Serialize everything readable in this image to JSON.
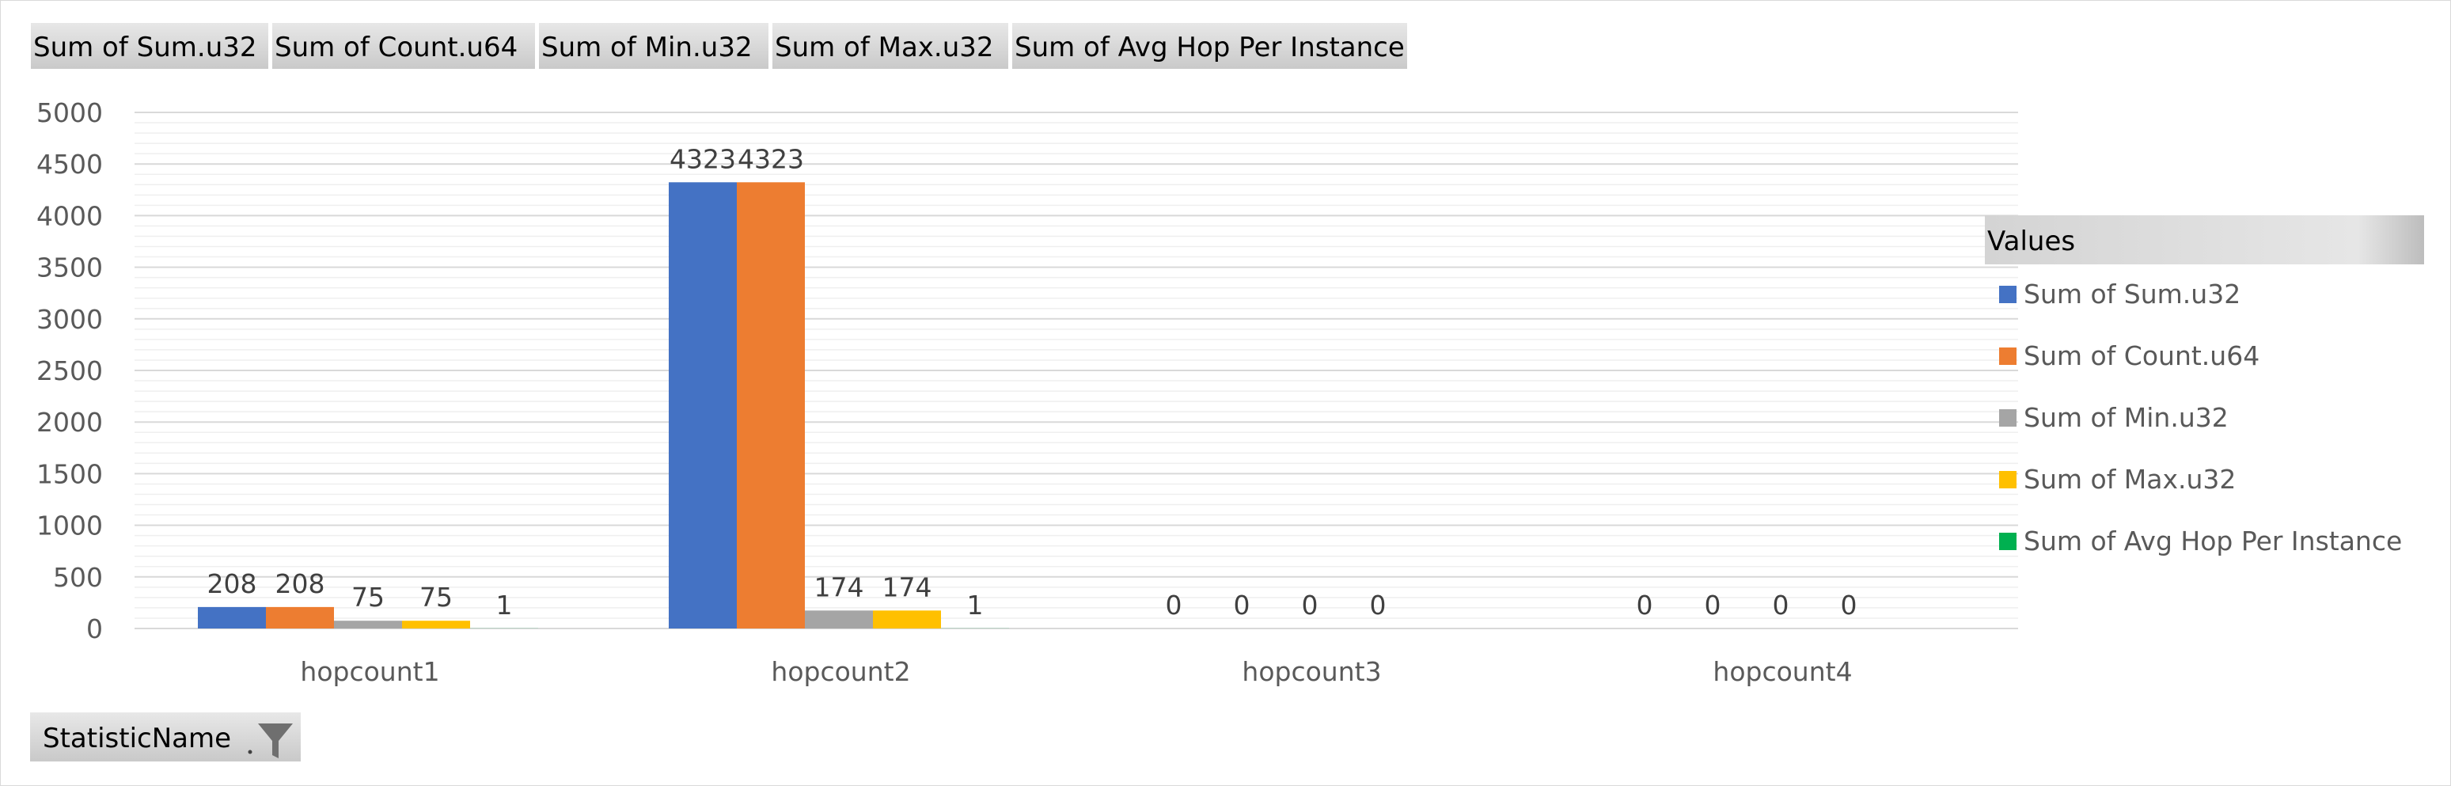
{
  "pivot_fields": {
    "value_buttons": [
      "Sum of  Sum.u32",
      "Sum of  Count.u64",
      "Sum of  Min.u32",
      "Sum of  Max.u32",
      "Sum of Avg Hop Per Instance"
    ],
    "axis_button": "StatisticName",
    "legend_header": "Values"
  },
  "chart_data": {
    "type": "bar",
    "categories": [
      "hopcount1",
      "hopcount2",
      "hopcount3",
      "hopcount4"
    ],
    "series": [
      {
        "name": "Sum of  Sum.u32",
        "color": "#4472C4",
        "values": [
          208,
          4323,
          0,
          0
        ],
        "labels": [
          "208",
          "4323",
          "0",
          "0"
        ]
      },
      {
        "name": "Sum of  Count.u64",
        "color": "#ED7D31",
        "values": [
          208,
          4323,
          0,
          0
        ],
        "labels": [
          "208",
          "4323",
          "0",
          "0"
        ]
      },
      {
        "name": "Sum of  Min.u32",
        "color": "#A5A5A5",
        "values": [
          75,
          174,
          0,
          0
        ],
        "labels": [
          "75",
          "174",
          "0",
          "0"
        ]
      },
      {
        "name": "Sum of  Max.u32",
        "color": "#FFC000",
        "values": [
          75,
          174,
          0,
          0
        ],
        "labels": [
          "75",
          "174",
          "0",
          "0"
        ]
      },
      {
        "name": "Sum of Avg Hop Per Instance",
        "color": "#00B050",
        "values": [
          1,
          1,
          null,
          null
        ],
        "labels": [
          "1",
          "1",
          "",
          ""
        ]
      }
    ],
    "yticks": [
      0,
      500,
      1000,
      1500,
      2000,
      2500,
      3000,
      3500,
      4000,
      4500,
      5000
    ],
    "ylim": [
      0,
      5000
    ],
    "grid": true,
    "legend": "right",
    "title": "",
    "xlabel": "",
    "ylabel": ""
  }
}
